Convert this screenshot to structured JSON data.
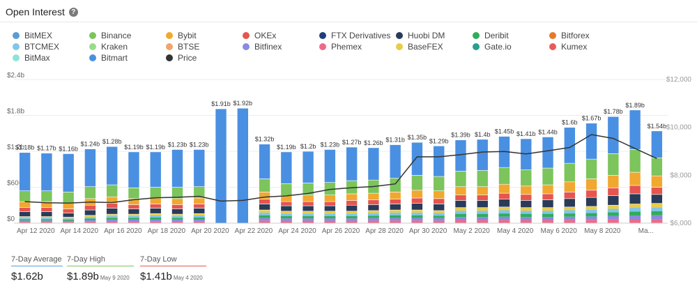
{
  "header": {
    "title": "Open Interest",
    "help_icon": "?"
  },
  "legend": [
    {
      "name": "BitMEX",
      "color": "#5b9bd5"
    },
    {
      "name": "Binance",
      "color": "#7cc45c"
    },
    {
      "name": "Bybit",
      "color": "#f0a830"
    },
    {
      "name": "OKEx",
      "color": "#e6554f"
    },
    {
      "name": "FTX Derivatives",
      "color": "#1f3f7a"
    },
    {
      "name": "Huobi DM",
      "color": "#2a3b58"
    },
    {
      "name": "Deribit",
      "color": "#2fad5a"
    },
    {
      "name": "Bitforex",
      "color": "#e37b2a"
    },
    {
      "name": "BTCMEX",
      "color": "#80c6e8"
    },
    {
      "name": "Kraken",
      "color": "#98dc88"
    },
    {
      "name": "BTSE",
      "color": "#f3a46a"
    },
    {
      "name": "Bitfinex",
      "color": "#8a8ae0"
    },
    {
      "name": "Phemex",
      "color": "#ee6a8a"
    },
    {
      "name": "BaseFEX",
      "color": "#e8cc4a"
    },
    {
      "name": "Gate.io",
      "color": "#2a9d8f"
    },
    {
      "name": "Kumex",
      "color": "#e85b5b"
    },
    {
      "name": "BitMax",
      "color": "#8fe3d6"
    },
    {
      "name": "Bitmart",
      "color": "#4a90e2"
    },
    {
      "name": "Price",
      "color": "#333333"
    }
  ],
  "chart_data": {
    "type": "bar",
    "stacked": true,
    "y_left_ticks": [
      "$0",
      "$600m",
      "$1.2b",
      "$1.8b",
      "$2.4b"
    ],
    "y_left_range": [
      0,
      2.4
    ],
    "y_right_ticks": [
      "$6,000",
      "$8,000",
      "$10,000",
      "$12,000"
    ],
    "y_right_range": [
      6000,
      12000
    ],
    "x_ticks": [
      "Apr 12 2020",
      "Apr 14 2020",
      "Apr 16 2020",
      "Apr 18 2020",
      "Apr 20 2020",
      "Apr 22 2020",
      "Apr 24 2020",
      "Apr 26 2020",
      "Apr 28 2020",
      "Apr 30 2020",
      "May 2 2020",
      "May 4 2020",
      "May 6 2020",
      "May 8 2020",
      "Ma..."
    ],
    "x_tick_positions": [
      1,
      3,
      5,
      7,
      9,
      11,
      13,
      15,
      17,
      19,
      21,
      23,
      25,
      27,
      29
    ],
    "totals": [
      1.18,
      1.17,
      1.16,
      1.24,
      1.28,
      1.19,
      1.19,
      1.23,
      1.23,
      1.91,
      1.92,
      1.32,
      1.19,
      1.2,
      1.23,
      1.27,
      1.26,
      1.31,
      1.35,
      1.29,
      1.39,
      1.4,
      1.45,
      1.41,
      1.44,
      1.6,
      1.67,
      1.78,
      1.89,
      1.54
    ],
    "data_labels": [
      "$1.18b",
      "$1.17b",
      "$1.16b",
      "$1.24b",
      "$1.28b",
      "$1.19b",
      "$1.19b",
      "$1.23b",
      "$1.23b",
      "$1.91b",
      "$1.92b",
      "$1.32b",
      "$1.19b",
      "$1.2b",
      "$1.23b",
      "$1.27b",
      "$1.26b",
      "$1.31b",
      "$1.35b",
      "$1.29b",
      "$1.39b",
      "$1.4b",
      "$1.45b",
      "$1.41b",
      "$1.44b",
      "$1.6b",
      "$1.67b",
      "$1.78b",
      "$1.89b",
      "$1.54b"
    ],
    "bitmex": [
      0.64,
      0.63,
      0.64,
      0.63,
      0.64,
      0.6,
      0.59,
      0.63,
      0.62,
      1.91,
      1.92,
      0.58,
      0.53,
      0.53,
      0.55,
      0.56,
      0.54,
      0.56,
      0.55,
      0.51,
      0.52,
      0.52,
      0.52,
      0.52,
      0.52,
      0.6,
      0.6,
      0.62,
      0.66,
      0.45
    ],
    "binance": [
      0.18,
      0.18,
      0.18,
      0.2,
      0.2,
      0.18,
      0.18,
      0.19,
      0.19,
      0.0,
      0.0,
      0.22,
      0.2,
      0.2,
      0.21,
      0.22,
      0.22,
      0.23,
      0.25,
      0.24,
      0.26,
      0.27,
      0.28,
      0.27,
      0.28,
      0.31,
      0.33,
      0.36,
      0.38,
      0.3
    ],
    "bybit": [
      0.1,
      0.1,
      0.1,
      0.11,
      0.11,
      0.1,
      0.1,
      0.1,
      0.1,
      0.0,
      0.0,
      0.12,
      0.1,
      0.11,
      0.11,
      0.11,
      0.11,
      0.12,
      0.13,
      0.13,
      0.14,
      0.14,
      0.15,
      0.14,
      0.15,
      0.17,
      0.19,
      0.21,
      0.22,
      0.19
    ],
    "okex": [
      0.07,
      0.07,
      0.07,
      0.08,
      0.08,
      0.07,
      0.07,
      0.07,
      0.07,
      0.0,
      0.0,
      0.08,
      0.07,
      0.07,
      0.07,
      0.08,
      0.08,
      0.08,
      0.09,
      0.09,
      0.09,
      0.09,
      0.1,
      0.1,
      0.1,
      0.11,
      0.12,
      0.13,
      0.14,
      0.12
    ],
    "ftx_huobi": [
      0.08,
      0.08,
      0.07,
      0.09,
      0.1,
      0.09,
      0.09,
      0.09,
      0.09,
      0.0,
      0.0,
      0.1,
      0.09,
      0.09,
      0.09,
      0.1,
      0.1,
      0.1,
      0.11,
      0.11,
      0.12,
      0.12,
      0.13,
      0.12,
      0.13,
      0.14,
      0.15,
      0.16,
      0.17,
      0.15
    ],
    "price": [
      6900,
      6850,
      6840,
      6880,
      6860,
      6980,
      7060,
      7080,
      7120,
      6920,
      6950,
      7090,
      7140,
      7240,
      7410,
      7480,
      7530,
      7640,
      8770,
      8770,
      8860,
      8970,
      8990,
      8890,
      9020,
      9160,
      9700,
      9540,
      9120,
      8700
    ],
    "colors": {
      "bitmex": "#4a90e2",
      "binance": "#7cc45c",
      "bybit": "#f0a830",
      "okex": "#e6554f",
      "ftx_huobi": "#2a3b58",
      "price": "#333333"
    }
  },
  "stats": {
    "avg": {
      "label": "7-Day Average",
      "value": "$1.62b",
      "date": "",
      "color": "#5b9bd5"
    },
    "high": {
      "label": "7-Day High",
      "value": "$1.89b",
      "date": "May 9 2020",
      "color": "#7cc45c"
    },
    "low": {
      "label": "7-Day Low",
      "value": "$1.41b",
      "date": "May 4 2020",
      "color": "#e6554f"
    }
  }
}
